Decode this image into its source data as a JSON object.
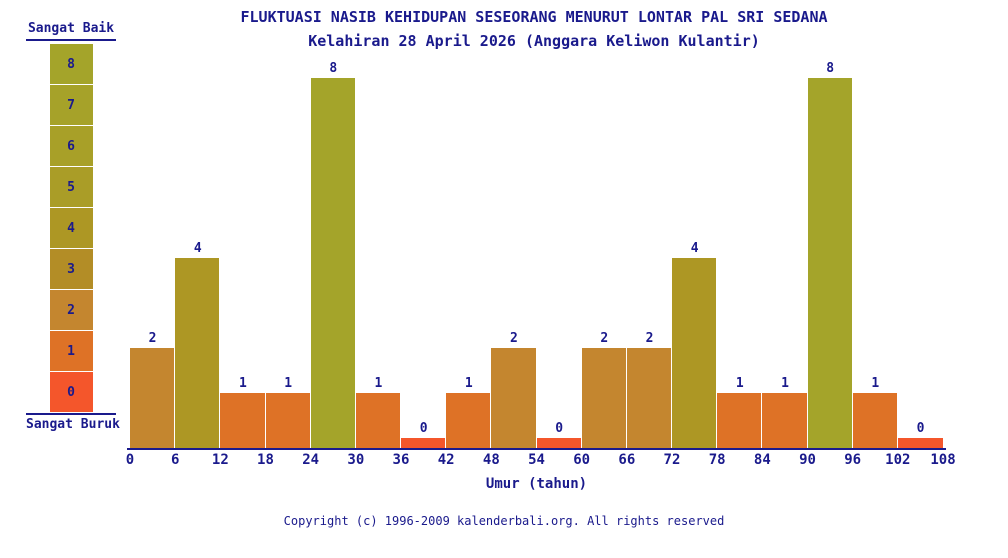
{
  "title": "FLUKTUASI NASIB KEHIDUPAN SESEORANG MENURUT LONTAR PAL SRI SEDANA",
  "subtitle": "Kelahiran 28 April 2026 (Anggara Keliwon Kulantir)",
  "legend": {
    "top_label": "Sangat Baik",
    "bottom_label": "Sangat Buruk",
    "levels": [
      {
        "value": 8,
        "color": "#a4a42a"
      },
      {
        "value": 7,
        "color": "#a6a229"
      },
      {
        "value": 6,
        "color": "#a8a028"
      },
      {
        "value": 5,
        "color": "#aa9d27"
      },
      {
        "value": 4,
        "color": "#ad9724"
      },
      {
        "value": 3,
        "color": "#b38d26"
      },
      {
        "value": 2,
        "color": "#c4862f"
      },
      {
        "value": 1,
        "color": "#de7226"
      },
      {
        "value": 0,
        "color": "#f4562b"
      }
    ]
  },
  "chart_data": {
    "type": "bar",
    "x_ticks": [
      0,
      6,
      12,
      18,
      24,
      30,
      36,
      42,
      48,
      54,
      60,
      66,
      72,
      78,
      84,
      90,
      96,
      102,
      108
    ],
    "age_bins": [
      "0-6",
      "6-12",
      "12-18",
      "18-24",
      "24-30",
      "30-36",
      "36-42",
      "42-48",
      "48-54",
      "54-60",
      "60-66",
      "66-72",
      "72-78",
      "78-84",
      "84-90",
      "90-96",
      "96-102",
      "102-108"
    ],
    "values": [
      2,
      4,
      1,
      1,
      8,
      1,
      0,
      1,
      2,
      0,
      2,
      2,
      4,
      1,
      1,
      8,
      1,
      0
    ],
    "xlabel": "Umur (tahun)",
    "ylim": [
      0,
      8
    ],
    "grid": false,
    "legend_position": "left",
    "colors_by_value": {
      "0": "#f4562b",
      "1": "#de7226",
      "2": "#c4862f",
      "3": "#b38d26",
      "4": "#ad9724",
      "5": "#aa9d27",
      "6": "#a8a028",
      "7": "#a6a229",
      "8": "#a4a42a"
    }
  },
  "footer": "Copyright (c) 1996-2009 kalenderbali.org. All rights reserved",
  "colors": {
    "text": "#1a1a8c",
    "axis": "#1a1a8c",
    "background": "#ffffff"
  }
}
